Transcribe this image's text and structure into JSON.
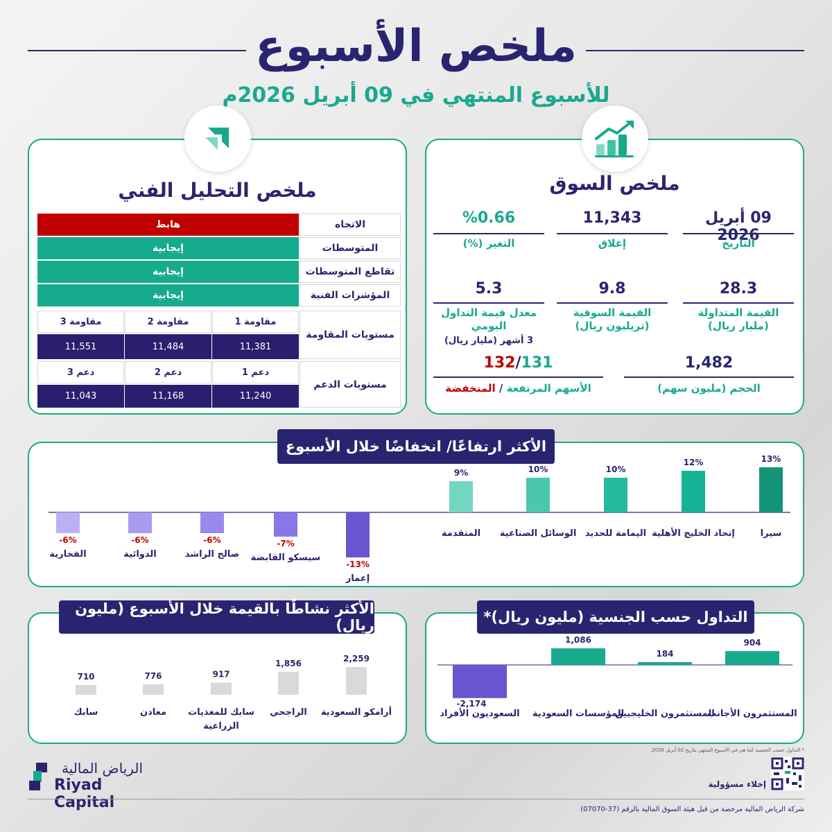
{
  "header": {
    "title": "ملخص الأسبوع",
    "subtitle": "للأسبوع المنتهي في 09 أبريل 2026م"
  },
  "market_summary": {
    "title": "ملخص السوق",
    "date_value": "09 أبريل 2026",
    "date_label": "التاريخ",
    "close_value": "11,343",
    "close_label": "إغلاق",
    "change_value": "%0.66",
    "change_label": "التغير (%)",
    "traded_value": "28.3",
    "traded_label": "القيمة المتداولة",
    "traded_unit": "(مليار ريال)",
    "mcap_value": "9.8",
    "mcap_label": "القيمة السوقية",
    "mcap_unit": "(تريليون ريال)",
    "avg_value": "5.3",
    "avg_label": "معدل قيمة التداول",
    "avg_label2": "اليومي",
    "avg_sub": "3 أشهر (مليار ريال)",
    "volume_value": "1,482",
    "volume_label": "الحجم (مليون سهم)",
    "adv_value": "131",
    "adv_sep": "/",
    "dec_value": "132",
    "breadth_label_adv": "الأسهم المرتفعة",
    "breadth_sep": " / ",
    "breadth_label_dec": "المنخفضة"
  },
  "technical": {
    "title": "ملخص التحليل الفني",
    "rows": [
      {
        "label": "الاتجاه",
        "value": "هابط",
        "color": "#c00000"
      },
      {
        "label": "المتوسطات",
        "value": "إيجابية",
        "color": "#17ab8d"
      },
      {
        "label": "تقاطع المتوسطات",
        "value": "إيجابية",
        "color": "#17ab8d"
      },
      {
        "label": "المؤشرات الفنية",
        "value": "إيجابية",
        "color": "#17ab8d"
      }
    ],
    "resistance_label": "مستويات المقاومة",
    "resistance_heads": [
      "مقاومة 1",
      "مقاومة 2",
      "مقاومة 3"
    ],
    "resistance_values": [
      "11,381",
      "11,484",
      "11,551"
    ],
    "support_label": "مستويات الدعم",
    "support_heads": [
      "دعم 1",
      "دعم 2",
      "دعم 3"
    ],
    "support_values": [
      "11,240",
      "11,168",
      "11,043"
    ]
  },
  "chart_data": [
    {
      "type": "bar",
      "title": "الأكثر ارتفاعًا/ انخفاضًا خلال الأسبوع",
      "categories": [
        "سيرا",
        "إتحاد الخليج الأهلية",
        "اليمامة للحديد",
        "الوسائل الصناعية",
        "المتقدمة",
        "إعمار",
        "سيسكو القابضة",
        "صالح الراشد",
        "الدوائية",
        "الفخارية"
      ],
      "values": [
        13,
        12,
        10,
        10,
        9,
        -13,
        -7,
        -6,
        -6,
        -6
      ],
      "value_labels": [
        "13%",
        "12%",
        "10%",
        "10%",
        "9%",
        "-13%",
        "-7%",
        "-6%",
        "-6%",
        "-6%"
      ],
      "colors": [
        "#139478",
        "#17b295",
        "#22bb9d",
        "#4ac8af",
        "#72d6c2",
        "#6a55d0",
        "#8a76e6",
        "#9a88ec",
        "#aa9bf0",
        "#bcb0f4"
      ]
    },
    {
      "type": "bar",
      "title": "التداول حسب الجنسية (مليون ريال)*",
      "categories": [
        "المستثمرون الأجانب",
        "المستثمرون الخليجيين",
        "المؤسسات السعودية",
        "السعوديون الأفراد"
      ],
      "values": [
        904,
        184,
        1086,
        -2174
      ],
      "value_labels": [
        "904",
        "184",
        "1,086",
        "-2,174"
      ],
      "colors": [
        "#17ab8d",
        "#17ab8d",
        "#17ab8d",
        "#6a55d0"
      ],
      "footnote": "* التداول حسب الجنسية كما هي في الأسبوع المنتهي بتاريخ 02 أبريل 2026."
    },
    {
      "type": "bar",
      "title": "الأكثر نشاطًا بالقيمة خلال الأسبوع (مليون ريال)",
      "categories": [
        "أرامكو السعودية",
        "الراجحي",
        "سابك للمغذيات الزراعية",
        "معادن",
        "سابك"
      ],
      "values": [
        2259,
        1856,
        917,
        776,
        710
      ],
      "value_labels": [
        "2,259",
        "1,856",
        "917",
        "776",
        "710"
      ],
      "colors": [
        "#d9d9d9",
        "#d9d9d9",
        "#d9d9d9",
        "#d9d9d9",
        "#d9d9d9"
      ]
    }
  ],
  "footer": {
    "logo_ar": "الرياض المالية",
    "logo_en": "Riyad Capital",
    "disclaimer": "إخلاء مسؤولية",
    "license": "شركة الرياض المالية مرخصة من قبل هيئة السوق المالية بالرقم (37-07070)"
  }
}
